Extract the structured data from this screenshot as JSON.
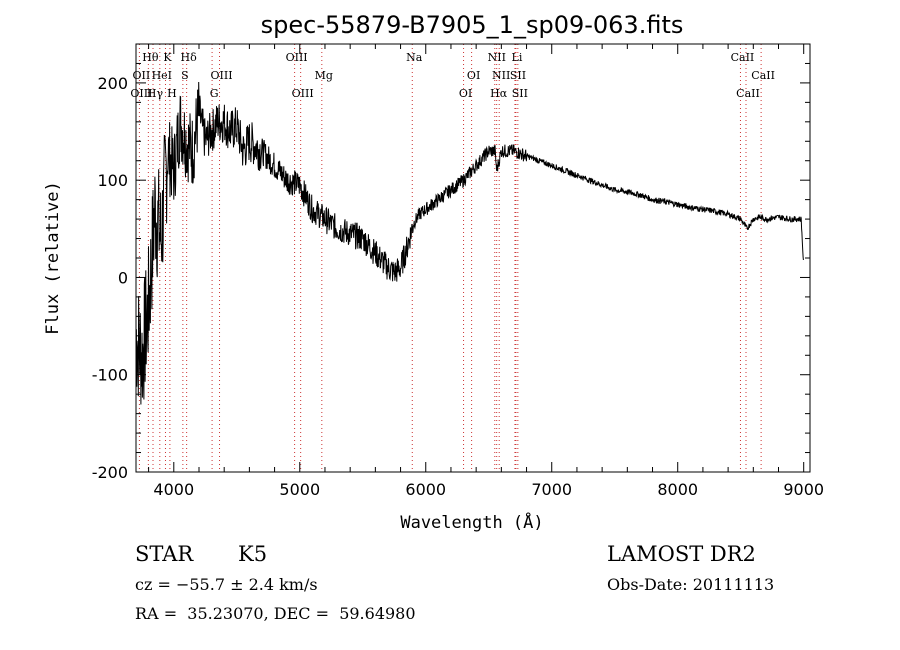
{
  "chart_data": {
    "type": "line",
    "title": "spec-55879-B7905_1_sp09-063.fits",
    "xlabel": "Wavelength (Å)",
    "ylabel": "Flux (relative)",
    "xlim": [
      3700,
      9050
    ],
    "ylim": [
      -200,
      240
    ],
    "xticks": [
      4000,
      5000,
      6000,
      7000,
      8000,
      9000
    ],
    "yticks": [
      -200,
      -100,
      0,
      100,
      200
    ],
    "grid": false,
    "line_color": "#000000",
    "marker_color": "#cc3333",
    "series": [
      {
        "x": [
          3700,
          3750,
          3800,
          3850,
          3900,
          3950,
          4000,
          4050,
          4100,
          4150,
          4200,
          4250,
          4300,
          4350,
          4400,
          4450,
          4500,
          4550,
          4600,
          4700,
          4800,
          4900,
          5000,
          5100,
          5200,
          5300,
          5400,
          5500,
          5600,
          5700,
          5750,
          5800,
          5850,
          5900,
          5950,
          6000,
          6100,
          6200,
          6300,
          6400,
          6500,
          6550,
          6563,
          6600,
          6700,
          6800,
          6900,
          7000,
          7100,
          7200,
          7300,
          7400,
          7500,
          7600,
          7700,
          7800,
          7900,
          8000,
          8100,
          8200,
          8300,
          8400,
          8500,
          8550,
          8600,
          8650,
          8700,
          8800,
          8900,
          8980,
          9000
        ],
        "y": [
          -60,
          -80,
          -30,
          70,
          40,
          130,
          110,
          160,
          140,
          130,
          170,
          140,
          150,
          160,
          160,
          150,
          155,
          130,
          140,
          130,
          115,
          100,
          95,
          70,
          60,
          50,
          45,
          40,
          25,
          10,
          5,
          10,
          30,
          55,
          65,
          70,
          80,
          90,
          100,
          115,
          130,
          130,
          110,
          130,
          130,
          125,
          120,
          115,
          110,
          105,
          100,
          95,
          90,
          88,
          85,
          80,
          78,
          75,
          72,
          70,
          68,
          65,
          60,
          50,
          60,
          62,
          60,
          62,
          60,
          60,
          10
        ]
      }
    ],
    "line_annotations": [
      {
        "label": "Hδ",
        "wavelength": 4102,
        "row": 1
      },
      {
        "label": "Hθ",
        "wavelength": 3798,
        "row": 1
      },
      {
        "label": "K",
        "wavelength": 3934,
        "row": 1
      },
      {
        "label": "OII",
        "wavelength": 3727,
        "row": 2
      },
      {
        "label": "HeI",
        "wavelength": 3889,
        "row": 2
      },
      {
        "label": "S",
        "wavelength": 4072,
        "row": 2
      },
      {
        "label": "OIII",
        "wavelength": 3727,
        "row": 3
      },
      {
        "label": "Hγ",
        "wavelength": 3835,
        "row": 3
      },
      {
        "label": "H",
        "wavelength": 3969,
        "row": 3
      },
      {
        "label": "OIII",
        "wavelength": 4363,
        "row": 2
      },
      {
        "label": "G",
        "wavelength": 4304,
        "row": 3
      },
      {
        "label": "OIII",
        "wavelength": 4959,
        "row": 1
      },
      {
        "label": "OIII",
        "wavelength": 5007,
        "row": 3
      },
      {
        "label": "Mg",
        "wavelength": 5175,
        "row": 2
      },
      {
        "label": "Na",
        "wavelength": 5893,
        "row": 1
      },
      {
        "label": "OI",
        "wavelength": 6300,
        "row": 3
      },
      {
        "label": "OI",
        "wavelength": 6364,
        "row": 2
      },
      {
        "label": "NII",
        "wavelength": 6548,
        "row": 1
      },
      {
        "label": "Li",
        "wavelength": 6708,
        "row": 1
      },
      {
        "label": "NII",
        "wavelength": 6583,
        "row": 2
      },
      {
        "label": "SII",
        "wavelength": 6716,
        "row": 2
      },
      {
        "label": "Hα",
        "wavelength": 6563,
        "row": 3
      },
      {
        "label": "SII",
        "wavelength": 6731,
        "row": 3
      },
      {
        "label": "CaII",
        "wavelength": 8498,
        "row": 1
      },
      {
        "label": "CaII",
        "wavelength": 8662,
        "row": 2
      },
      {
        "label": "CaII",
        "wavelength": 8542,
        "row": 3
      }
    ]
  },
  "info": {
    "object_class": "STAR",
    "subclass": "K5",
    "redshift": "cz = −55.7 ± 2.4 km/s",
    "position": "RA =  35.23070, DEC =  59.64980",
    "survey": "LAMOST DR2",
    "obs_date": "Obs-Date: 20111113"
  }
}
